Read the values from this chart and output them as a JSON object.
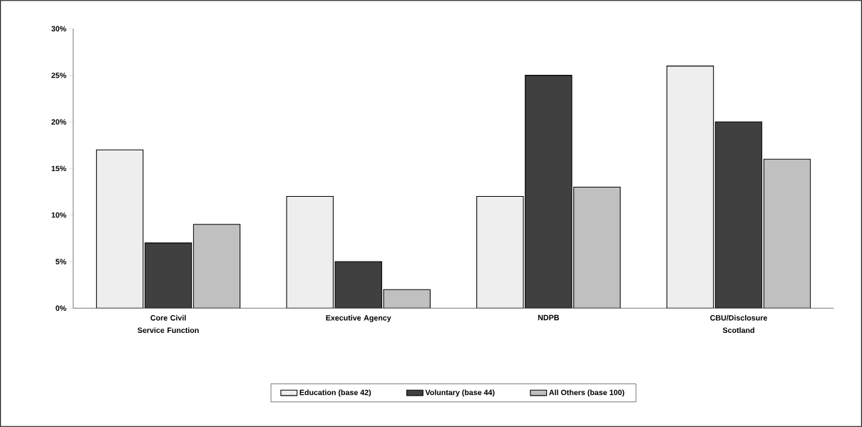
{
  "chart_data": {
    "type": "bar",
    "categories": [
      "Core Civil Service Function",
      "Executive Agency",
      "NDPB",
      "CBU/Disclosure Scotland"
    ],
    "series": [
      {
        "name": "Education (base 42)",
        "color": "#eeeeee",
        "values": [
          17,
          12,
          12,
          26
        ]
      },
      {
        "name": "Voluntary (base 44)",
        "color": "#404040",
        "values": [
          7,
          5,
          25,
          20
        ]
      },
      {
        "name": "All Others (base 100)",
        "color": "#c0c0c0",
        "values": [
          9,
          2,
          13,
          16
        ]
      }
    ],
    "ylim": [
      0,
      30
    ],
    "yticks": [
      {
        "value": 0,
        "label": "0%"
      },
      {
        "value": 5,
        "label": "5%"
      },
      {
        "value": 10,
        "label": "10%"
      },
      {
        "value": 15,
        "label": "15%"
      },
      {
        "value": 20,
        "label": "20%"
      },
      {
        "value": 25,
        "label": "25%"
      },
      {
        "value": 30,
        "label": "30%"
      }
    ],
    "grid": false,
    "legend": "bottom"
  }
}
